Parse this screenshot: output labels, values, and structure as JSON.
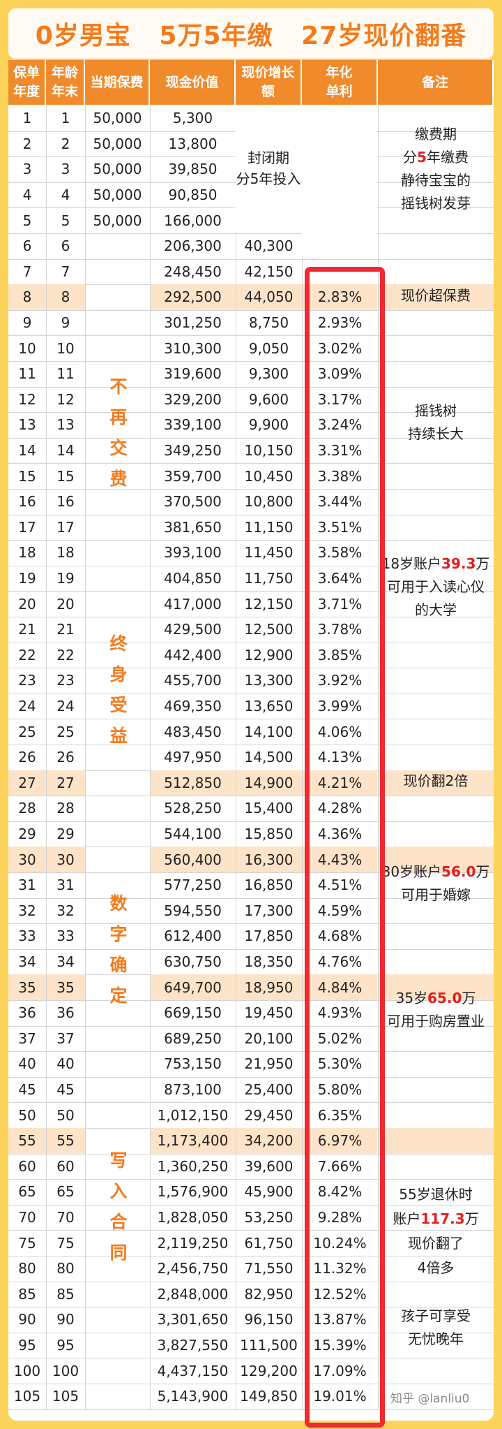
{
  "title": {
    "part1": "0岁男宝",
    "part2": "5万5年缴",
    "part3": "27岁现价翻番"
  },
  "columns": [
    "保单\n年度",
    "年龄\n年末",
    "当期保费",
    "现金价值",
    "现价增长\n额",
    "年化\n单利",
    "备注"
  ],
  "rows": [
    {
      "year": "1",
      "age": "1",
      "premium": "50,000",
      "cash": "5,300",
      "growth": "",
      "rate": ""
    },
    {
      "year": "2",
      "age": "2",
      "premium": "50,000",
      "cash": "13,800",
      "growth": "",
      "rate": ""
    },
    {
      "year": "3",
      "age": "3",
      "premium": "50,000",
      "cash": "39,850",
      "growth": "",
      "rate": ""
    },
    {
      "year": "4",
      "age": "4",
      "premium": "50,000",
      "cash": "90,850",
      "growth": "",
      "rate": ""
    },
    {
      "year": "5",
      "age": "5",
      "premium": "50,000",
      "cash": "166,000",
      "growth": "",
      "rate": ""
    },
    {
      "year": "6",
      "age": "6",
      "premium": "",
      "cash": "206,300",
      "growth": "40,300",
      "rate": ""
    },
    {
      "year": "7",
      "age": "7",
      "premium": "",
      "cash": "248,450",
      "growth": "42,150",
      "rate": ""
    },
    {
      "year": "8",
      "age": "8",
      "premium": "",
      "cash": "292,500",
      "growth": "44,050",
      "rate": "2.83%",
      "hl": true
    },
    {
      "year": "9",
      "age": "9",
      "premium": "",
      "cash": "301,250",
      "growth": "8,750",
      "rate": "2.93%"
    },
    {
      "year": "10",
      "age": "10",
      "premium": "",
      "cash": "310,300",
      "growth": "9,050",
      "rate": "3.02%"
    },
    {
      "year": "11",
      "age": "11",
      "premium": "",
      "cash": "319,600",
      "growth": "9,300",
      "rate": "3.09%"
    },
    {
      "year": "12",
      "age": "12",
      "premium": "",
      "cash": "329,200",
      "growth": "9,600",
      "rate": "3.17%"
    },
    {
      "year": "13",
      "age": "13",
      "premium": "",
      "cash": "339,100",
      "growth": "9,900",
      "rate": "3.24%"
    },
    {
      "year": "14",
      "age": "14",
      "premium": "",
      "cash": "349,250",
      "growth": "10,150",
      "rate": "3.31%"
    },
    {
      "year": "15",
      "age": "15",
      "premium": "",
      "cash": "359,700",
      "growth": "10,450",
      "rate": "3.38%"
    },
    {
      "year": "16",
      "age": "16",
      "premium": "",
      "cash": "370,500",
      "growth": "10,800",
      "rate": "3.44%"
    },
    {
      "year": "17",
      "age": "17",
      "premium": "",
      "cash": "381,650",
      "growth": "11,150",
      "rate": "3.51%"
    },
    {
      "year": "18",
      "age": "18",
      "premium": "",
      "cash": "393,100",
      "growth": "11,450",
      "rate": "3.58%"
    },
    {
      "year": "19",
      "age": "19",
      "premium": "",
      "cash": "404,850",
      "growth": "11,750",
      "rate": "3.64%"
    },
    {
      "year": "20",
      "age": "20",
      "premium": "",
      "cash": "417,000",
      "growth": "12,150",
      "rate": "3.71%"
    },
    {
      "year": "21",
      "age": "21",
      "premium": "",
      "cash": "429,500",
      "growth": "12,500",
      "rate": "3.78%"
    },
    {
      "year": "22",
      "age": "22",
      "premium": "",
      "cash": "442,400",
      "growth": "12,900",
      "rate": "3.85%"
    },
    {
      "year": "23",
      "age": "23",
      "premium": "",
      "cash": "455,700",
      "growth": "13,300",
      "rate": "3.92%"
    },
    {
      "year": "24",
      "age": "24",
      "premium": "",
      "cash": "469,350",
      "growth": "13,650",
      "rate": "3.99%"
    },
    {
      "year": "25",
      "age": "25",
      "premium": "",
      "cash": "483,450",
      "growth": "14,100",
      "rate": "4.06%"
    },
    {
      "year": "26",
      "age": "26",
      "premium": "",
      "cash": "497,950",
      "growth": "14,500",
      "rate": "4.13%"
    },
    {
      "year": "27",
      "age": "27",
      "premium": "",
      "cash": "512,850",
      "growth": "14,900",
      "rate": "4.21%",
      "hl": true
    },
    {
      "year": "28",
      "age": "28",
      "premium": "",
      "cash": "528,250",
      "growth": "15,400",
      "rate": "4.28%"
    },
    {
      "year": "29",
      "age": "29",
      "premium": "",
      "cash": "544,100",
      "growth": "15,850",
      "rate": "4.36%"
    },
    {
      "year": "30",
      "age": "30",
      "premium": "",
      "cash": "560,400",
      "growth": "16,300",
      "rate": "4.43%",
      "hl": true
    },
    {
      "year": "31",
      "age": "31",
      "premium": "",
      "cash": "577,250",
      "growth": "16,850",
      "rate": "4.51%"
    },
    {
      "year": "32",
      "age": "32",
      "premium": "",
      "cash": "594,550",
      "growth": "17,300",
      "rate": "4.59%"
    },
    {
      "year": "33",
      "age": "33",
      "premium": "",
      "cash": "612,400",
      "growth": "17,850",
      "rate": "4.68%"
    },
    {
      "year": "34",
      "age": "34",
      "premium": "",
      "cash": "630,750",
      "growth": "18,350",
      "rate": "4.76%"
    },
    {
      "year": "35",
      "age": "35",
      "premium": "",
      "cash": "649,700",
      "growth": "18,950",
      "rate": "4.84%",
      "hl": true
    },
    {
      "year": "36",
      "age": "36",
      "premium": "",
      "cash": "669,150",
      "growth": "19,450",
      "rate": "4.93%"
    },
    {
      "year": "37",
      "age": "37",
      "premium": "",
      "cash": "689,250",
      "growth": "20,100",
      "rate": "5.02%"
    },
    {
      "year": "40",
      "age": "40",
      "premium": "",
      "cash": "753,150",
      "growth": "21,950",
      "rate": "5.30%"
    },
    {
      "year": "45",
      "age": "45",
      "premium": "",
      "cash": "873,100",
      "growth": "25,400",
      "rate": "5.80%"
    },
    {
      "year": "50",
      "age": "50",
      "premium": "",
      "cash": "1,012,150",
      "growth": "29,450",
      "rate": "6.35%"
    },
    {
      "year": "55",
      "age": "55",
      "premium": "",
      "cash": "1,173,400",
      "growth": "34,200",
      "rate": "6.97%",
      "hl": true
    },
    {
      "year": "60",
      "age": "60",
      "premium": "",
      "cash": "1,360,250",
      "growth": "39,600",
      "rate": "7.66%"
    },
    {
      "year": "65",
      "age": "65",
      "premium": "",
      "cash": "1,576,900",
      "growth": "45,900",
      "rate": "8.42%"
    },
    {
      "year": "70",
      "age": "70",
      "premium": "",
      "cash": "1,828,050",
      "growth": "53,250",
      "rate": "9.28%"
    },
    {
      "year": "75",
      "age": "75",
      "premium": "",
      "cash": "2,119,250",
      "growth": "61,750",
      "rate": "10.24%"
    },
    {
      "year": "80",
      "age": "80",
      "premium": "",
      "cash": "2,456,750",
      "growth": "71,550",
      "rate": "11.32%"
    },
    {
      "year": "85",
      "age": "85",
      "premium": "",
      "cash": "2,848,000",
      "growth": "82,950",
      "rate": "12.52%"
    },
    {
      "year": "90",
      "age": "90",
      "premium": "",
      "cash": "3,301,650",
      "growth": "96,150",
      "rate": "13.87%"
    },
    {
      "year": "95",
      "age": "95",
      "premium": "",
      "cash": "3,827,550",
      "growth": "111,500",
      "rate": "15.39%"
    },
    {
      "year": "100",
      "age": "100",
      "premium": "",
      "cash": "4,437,150",
      "growth": "129,200",
      "rate": "17.09%"
    },
    {
      "year": "105",
      "age": "105",
      "premium": "",
      "cash": "5,143,900",
      "growth": "149,850",
      "rate": "19.01%"
    }
  ],
  "closed_period": "封闭期\n分5年投入",
  "side_labels": {
    "no_pay": "不\n再\n交\n费",
    "lifelong": "终\n身\n受\n益",
    "fixed": "数\n字\n确\n定",
    "contract": "写\n入\n合\n同"
  },
  "notes": {
    "n1_a": "缴费期",
    "n1_b": "分",
    "n1_c": "5",
    "n1_d": "年缴费",
    "n1_e": "静待宝宝的",
    "n1_f": "摇钱树发芽",
    "n2": "现价超保费",
    "n3": "摇钱树\n持续长大",
    "n4_a": "18岁账户",
    "n4_b": "39.3",
    "n4_c": "万",
    "n4_d": "可用于入读心仪",
    "n4_e": "的大学",
    "n5": "现价翻2倍",
    "n6_a": "30岁账户",
    "n6_b": "56.0",
    "n6_c": "万",
    "n6_d": "可用于婚嫁",
    "n7_a": "35岁",
    "n7_b": "65.0",
    "n7_c": "万",
    "n7_d": "可用于购房置业",
    "n8_a": "55岁退休时",
    "n8_b": "账户",
    "n8_c": "117.3",
    "n8_d": "万",
    "n8_e": "现价翻了",
    "n8_f": "4倍多",
    "n9_a": "孩子可享受",
    "n9_b": "无忧晚年"
  },
  "watermark": "知乎 @lanliu0",
  "colors": {
    "header_bg": "#f18a2b",
    "title_text": "#f47b1c",
    "highlight_row": "#fde3c8",
    "red_emphasis": "#e01e1e",
    "red_box": "#ee2a32",
    "page_bg": "#fbd35a"
  }
}
